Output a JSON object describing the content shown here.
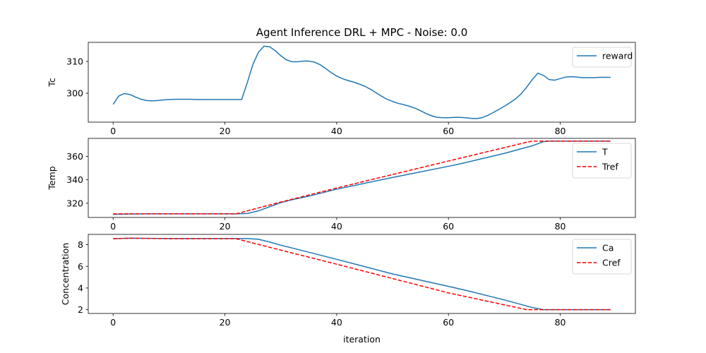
{
  "title": "Agent Inference DRL + MPC - Noise: 0.0",
  "chart_data": [
    {
      "type": "line",
      "ylabel": "Tc",
      "xlabel": "",
      "xlim": [
        -4.45,
        93.45
      ],
      "ylim": [
        290.9,
        316.0
      ],
      "xticks": [
        0,
        20,
        40,
        60,
        80
      ],
      "yticks": [
        300,
        310
      ],
      "legend_position": "upper right",
      "series": [
        {
          "name": "reward",
          "color": "#1f77b4",
          "dash": "solid",
          "x": [
            0,
            1,
            2,
            3,
            4,
            5,
            6,
            7,
            8,
            9,
            10,
            11,
            12,
            13,
            14,
            15,
            16,
            17,
            18,
            19,
            20,
            21,
            22,
            23,
            24,
            25,
            26,
            27,
            28,
            29,
            30,
            31,
            32,
            33,
            34,
            35,
            36,
            37,
            38,
            39,
            40,
            41,
            42,
            43,
            44,
            45,
            46,
            47,
            48,
            49,
            50,
            51,
            52,
            53,
            54,
            55,
            56,
            57,
            58,
            59,
            60,
            61,
            62,
            63,
            64,
            65,
            66,
            67,
            68,
            69,
            70,
            71,
            72,
            73,
            74,
            75,
            76,
            77,
            78,
            79,
            80,
            81,
            82,
            83,
            84,
            85,
            86,
            87,
            88,
            89
          ],
          "values": [
            296.5,
            299.1,
            299.9,
            299.6,
            298.8,
            298.1,
            297.7,
            297.6,
            297.7,
            297.9,
            298.0,
            298.1,
            298.1,
            298.1,
            298.1,
            298.0,
            298.0,
            298.0,
            298.0,
            298.0,
            298.0,
            298.0,
            298.0,
            298.0,
            303.3,
            309.0,
            312.9,
            314.8,
            314.6,
            313.4,
            311.8,
            310.5,
            309.9,
            309.9,
            310.1,
            310.1,
            309.8,
            309.0,
            307.8,
            306.5,
            305.4,
            304.6,
            304.0,
            303.5,
            302.9,
            302.2,
            301.3,
            300.2,
            299.1,
            298.1,
            297.4,
            296.8,
            296.4,
            295.9,
            295.3,
            294.5,
            293.6,
            292.9,
            292.4,
            292.3,
            292.3,
            292.4,
            292.4,
            292.3,
            292.1,
            292.0,
            292.3,
            293.0,
            293.9,
            294.9,
            295.9,
            297.0,
            298.2,
            299.8,
            301.9,
            304.3,
            306.3,
            305.6,
            304.3,
            304.1,
            304.6,
            305.1,
            305.2,
            305.1,
            304.9,
            304.9,
            304.9,
            305.0,
            305.0,
            305.0
          ]
        }
      ]
    },
    {
      "type": "line",
      "ylabel": "Temp",
      "xlabel": "",
      "xlim": [
        -4.45,
        93.45
      ],
      "ylim": [
        307.9,
        375.3
      ],
      "xticks": [
        0,
        20,
        40,
        60,
        80
      ],
      "yticks": [
        320,
        340,
        360
      ],
      "legend_position": "upper right",
      "series": [
        {
          "name": "T",
          "color": "#1f77b4",
          "dash": "solid",
          "x": [
            0,
            5,
            10,
            20,
            22,
            24,
            26,
            28,
            30,
            32,
            35,
            40,
            50,
            60,
            62,
            66,
            70,
            75,
            77,
            78,
            80,
            89
          ],
          "values": [
            310.5,
            311.0,
            311.0,
            311.0,
            311.0,
            311.3,
            313.5,
            317.0,
            320.5,
            323.0,
            326.0,
            332.0,
            342.0,
            351.5,
            353.5,
            358.0,
            362.5,
            369.0,
            372.5,
            373.0,
            373.0,
            373.0
          ]
        },
        {
          "name": "Tref",
          "color": "#ff0000",
          "dash": "dashed",
          "x": [
            0,
            5,
            22,
            30,
            40,
            60,
            74,
            75,
            89
          ],
          "values": [
            311.0,
            311.0,
            311.0,
            321.0,
            333.0,
            356.0,
            372.0,
            373.0,
            373.0
          ]
        }
      ]
    },
    {
      "type": "line",
      "ylabel": "Concentration",
      "xlabel": "iteration",
      "xlim": [
        -4.45,
        93.45
      ],
      "ylim": [
        1.65,
        8.95
      ],
      "xticks": [
        0,
        20,
        40,
        60,
        80
      ],
      "yticks": [
        2,
        4,
        6,
        8
      ],
      "legend_position": "upper right",
      "series": [
        {
          "name": "Ca",
          "color": "#1f77b4",
          "dash": "solid",
          "x": [
            0,
            3,
            10,
            20,
            24,
            26,
            28,
            30,
            32,
            40,
            50,
            60,
            63,
            70,
            75,
            77,
            78,
            89
          ],
          "values": [
            8.55,
            8.6,
            8.57,
            8.57,
            8.57,
            8.5,
            8.25,
            7.95,
            7.7,
            6.65,
            5.3,
            4.15,
            3.8,
            2.9,
            2.2,
            2.0,
            2.0,
            2.0
          ]
        },
        {
          "name": "Cref",
          "color": "#ff0000",
          "dash": "dashed",
          "x": [
            0,
            3,
            10,
            22,
            30,
            40,
            60,
            74,
            75,
            89
          ],
          "values": [
            8.55,
            8.6,
            8.55,
            8.55,
            7.5,
            6.2,
            3.55,
            2.0,
            2.0,
            2.0
          ]
        }
      ]
    }
  ]
}
